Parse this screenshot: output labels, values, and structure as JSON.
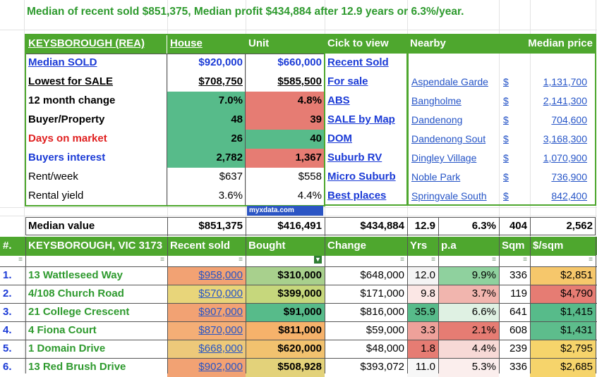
{
  "summary": "Median of recent sold $851,375, Median profit $434,884 after 12.9 years or 6.3%/year.",
  "stats_header": {
    "suburb": "KEYSBOROUGH (REA)",
    "house": "House",
    "unit": "Unit",
    "click": "Cick to view",
    "nearby": "Nearby",
    "median_price": "Median price"
  },
  "stats_rows": [
    {
      "label": "Median SOLD",
      "house": "$920,000",
      "unit": "$660,000",
      "link": "Recent Sold"
    },
    {
      "label": "Lowest for SALE",
      "house": "$708,750",
      "unit": "$585,500",
      "link": "For sale"
    },
    {
      "label": "12 month change",
      "house": "7.0%",
      "unit": "4.8%",
      "link": "ABS"
    },
    {
      "label": "Buyer/Property",
      "house": "48",
      "unit": "39",
      "link": "SALE by Map"
    },
    {
      "label": "Days on market",
      "house": "26",
      "unit": "40",
      "link": "DOM"
    },
    {
      "label": "Buyers interest",
      "house": "2,782",
      "unit": "1,367",
      "link": "Suburb RV"
    },
    {
      "label": "Rent/week",
      "house": "$637",
      "unit": "$558",
      "link": "Micro Suburb"
    },
    {
      "label": "Rental yield",
      "house": "3.6%",
      "unit": "4.4%",
      "link": "Best places"
    }
  ],
  "nearby": [
    {
      "name": "Aspendale Garde",
      "cur": "$",
      "price": "1,131,700"
    },
    {
      "name": "Bangholme",
      "cur": "$",
      "price": "2,141,300"
    },
    {
      "name": "Dandenong",
      "cur": "$",
      "price": "704,600"
    },
    {
      "name": "Dandenong Sout",
      "cur": "$",
      "price": "3,168,300"
    },
    {
      "name": "Dingley Village",
      "cur": "$",
      "price": "1,070,900"
    },
    {
      "name": "Noble Park",
      "cur": "$",
      "price": "736,900"
    },
    {
      "name": "Springvale South",
      "cur": "$",
      "price": "842,400"
    }
  ],
  "watermark": "myxdata.com",
  "median_row": {
    "label": "Median value",
    "sold": "$851,375",
    "bought": "$416,491",
    "change": "$434,884",
    "yrs": "12.9",
    "pa": "6.3%",
    "sqm": "404",
    "per_sqm": "2,562"
  },
  "sales_header": {
    "num": "#.",
    "address": "KEYSBOROUGH, VIC 3173",
    "sold": "Recent sold",
    "bought": "Bought",
    "change": "Change",
    "yrs": "Yrs",
    "pa": "p.a",
    "sqm": "Sqm",
    "per_sqm": "$/sqm"
  },
  "filter_icon": "filter-icon",
  "sales": [
    {
      "num": "1.",
      "address": "13 Wattleseed Way",
      "sold": "$958,000",
      "bought": "$310,000",
      "change": "$648,000",
      "yrs": "12.0",
      "pa": "9.9%",
      "sqm": "336",
      "per_sqm": "$2,851"
    },
    {
      "num": "2.",
      "address": "4/108 Church Road",
      "sold": "$570,000",
      "bought": "$399,000",
      "change": "$171,000",
      "yrs": "9.8",
      "pa": "3.7%",
      "sqm": "119",
      "per_sqm": "$4,790"
    },
    {
      "num": "3.",
      "address": "21 College Crescent",
      "sold": "$907,000",
      "bought": "$91,000",
      "change": "$816,000",
      "yrs": "35.9",
      "pa": "6.6%",
      "sqm": "641",
      "per_sqm": "$1,415"
    },
    {
      "num": "4.",
      "address": "4 Fiona Court",
      "sold": "$870,000",
      "bought": "$811,000",
      "change": "$59,000",
      "yrs": "3.3",
      "pa": "2.1%",
      "sqm": "608",
      "per_sqm": "$1,431"
    },
    {
      "num": "5.",
      "address": "1 Domain Drive",
      "sold": "$668,000",
      "bought": "$620,000",
      "change": "$48,000",
      "yrs": "1.8",
      "pa": "4.4%",
      "sqm": "239",
      "per_sqm": "$2,795"
    },
    {
      "num": "6.",
      "address": "13 Red Brush Drive",
      "sold": "$902,000",
      "bought": "$508,928",
      "change": "$393,072",
      "yrs": "11.0",
      "pa": "5.3%",
      "sqm": "336",
      "per_sqm": "$2,685"
    }
  ],
  "colors": {
    "header_green": "#4ea72e",
    "cell_green": "#57bb8a",
    "cell_red": "#e67c73",
    "cell_orange": "#f6b26b",
    "cell_yellow": "#f6d46b",
    "link_blue": "#2554c7"
  }
}
